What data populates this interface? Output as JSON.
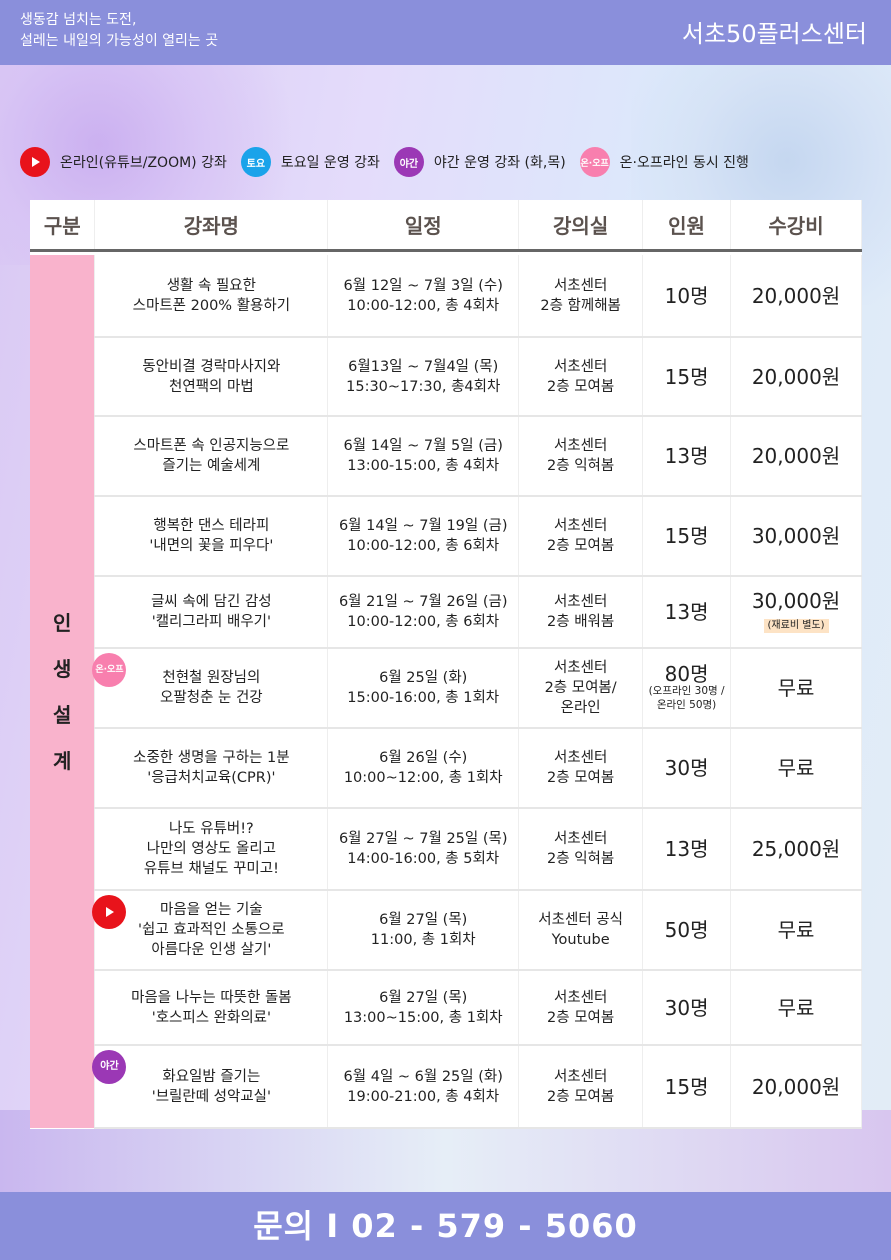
{
  "header": {
    "slogan_line1": "생동감 넘치는 도전,",
    "slogan_line2": "설레는 내일의 가능성이 열리는 곳",
    "brand": "서초50플러스센터"
  },
  "legend": [
    {
      "icon": "youtube-icon",
      "badge": "",
      "label": "온라인(유튜브/ZOOM) 강좌"
    },
    {
      "icon": "saturday-badge",
      "badge": "토요",
      "label": "토요일 운영 강좌"
    },
    {
      "icon": "night-badge",
      "badge": "야간",
      "label": "야간 운영 강좌 (화,목)"
    },
    {
      "icon": "on-off-badge",
      "badge": "온·오프",
      "label": "온·오프라인 동시 진행"
    }
  ],
  "columns": [
    "구분",
    "강좌명",
    "일정",
    "강의실",
    "인원",
    "수강비"
  ],
  "category": [
    "인",
    "생",
    "설",
    "계"
  ],
  "rows": [
    {
      "name1": "생활 속 필요한",
      "name2": "스마트폰 200% 활용하기",
      "name3": "",
      "date1": "6월 12일 ~ 7월 3일 (수)",
      "date2": "10:00-12:00, 총 4회차",
      "room1": "서초센터",
      "room2": "2층 함께해봄",
      "room3": "",
      "count": "10명",
      "count_note": "",
      "fee": "20,000원",
      "fee_note": "",
      "badge": ""
    },
    {
      "name1": "동안비결 경락마사지와",
      "name2": "천연팩의 마법",
      "name3": "",
      "date1": "6월13일 ~ 7월4일 (목)",
      "date2": "15:30~17:30, 총4회차",
      "room1": "서초센터",
      "room2": "2층 모여봄",
      "room3": "",
      "count": "15명",
      "count_note": "",
      "fee": "20,000원",
      "fee_note": "",
      "badge": ""
    },
    {
      "name1": "스마트폰 속 인공지능으로",
      "name2": "즐기는 예술세계",
      "name3": "",
      "date1": "6월 14일 ~ 7월 5일 (금)",
      "date2": "13:00-15:00, 총 4회차",
      "room1": "서초센터",
      "room2": "2층 익혀봄",
      "room3": "",
      "count": "13명",
      "count_note": "",
      "fee": "20,000원",
      "fee_note": "",
      "badge": ""
    },
    {
      "name1": "행복한 댄스 테라피",
      "name2": "'내면의 꽃을 피우다'",
      "name3": "",
      "date1": "6월 14일 ~ 7월 19일 (금)",
      "date2": "10:00-12:00, 총 6회차",
      "room1": "서초센터",
      "room2": "2층 모여봄",
      "room3": "",
      "count": "15명",
      "count_note": "",
      "fee": "30,000원",
      "fee_note": "",
      "badge": ""
    },
    {
      "name1": "글씨 속에 담긴 감성",
      "name2": "'캘리그라피 배우기'",
      "name3": "",
      "date1": "6월 21일 ~ 7월 26일 (금)",
      "date2": "10:00-12:00, 총 6회차",
      "room1": "서초센터",
      "room2": "2층 배워봄",
      "room3": "",
      "count": "13명",
      "count_note": "",
      "fee": "30,000원",
      "fee_note": "(재료비 별도)",
      "badge": ""
    },
    {
      "name1": "천현철 원장님의",
      "name2": "오팔청춘 눈 건강",
      "name3": "",
      "date1": "6월 25일 (화)",
      "date2": "15:00-16:00, 총 1회차",
      "room1": "서초센터",
      "room2": "2층 모여봄/",
      "room3": "온라인",
      "count": "80명",
      "count_note": "(오프라인 30명 / 온라인 50명)",
      "fee": "무료",
      "fee_note": "",
      "badge": "온·오프"
    },
    {
      "name1": "소중한 생명을 구하는 1분",
      "name2": "'응급처치교육(CPR)'",
      "name3": "",
      "date1": "6월 26일 (수)",
      "date2": "10:00~12:00, 총 1회차",
      "room1": "서초센터",
      "room2": "2층 모여봄",
      "room3": "",
      "count": "30명",
      "count_note": "",
      "fee": "무료",
      "fee_note": "",
      "badge": ""
    },
    {
      "name1": "나도 유튜버!?",
      "name2": "나만의 영상도 올리고",
      "name3": "유튜브 채널도 꾸미고!",
      "date1": "6월 27일 ~ 7월 25일 (목)",
      "date2": "14:00-16:00, 총 5회차",
      "room1": "서초센터",
      "room2": "2층 익혀봄",
      "room3": "",
      "count": "13명",
      "count_note": "",
      "fee": "25,000원",
      "fee_note": "",
      "badge": ""
    },
    {
      "name1": "마음을 얻는 기술",
      "name2": "'쉽고 효과적인 소통으로",
      "name3": "아름다운 인생 살기'",
      "date1": "6월 27일 (목)",
      "date2": "11:00, 총 1회차",
      "room1": "서초센터 공식",
      "room2": "Youtube",
      "room3": "",
      "count": "50명",
      "count_note": "",
      "fee": "무료",
      "fee_note": "",
      "badge": "youtube"
    },
    {
      "name1": "마음을 나누는 따뜻한 돌봄",
      "name2": "'호스피스 완화의료'",
      "name3": "",
      "date1": "6월 27일 (목)",
      "date2": "13:00~15:00, 총 1회차",
      "room1": "서초센터",
      "room2": "2층 모여봄",
      "room3": "",
      "count": "30명",
      "count_note": "",
      "fee": "무료",
      "fee_note": "",
      "badge": ""
    },
    {
      "name1": "화요일밤 즐기는",
      "name2": "'브릴란떼 성악교실'",
      "name3": "",
      "date1": "6월 4일 ~ 6월 25일 (화)",
      "date2": "19:00-21:00, 총 4회차",
      "room1": "서초센터",
      "room2": "2층 모여봄",
      "room3": "",
      "count": "15명",
      "count_note": "",
      "fee": "20,000원",
      "fee_note": "",
      "badge": "야간"
    }
  ],
  "footer": {
    "contact": "문의 I 02 - 579 - 5060"
  }
}
